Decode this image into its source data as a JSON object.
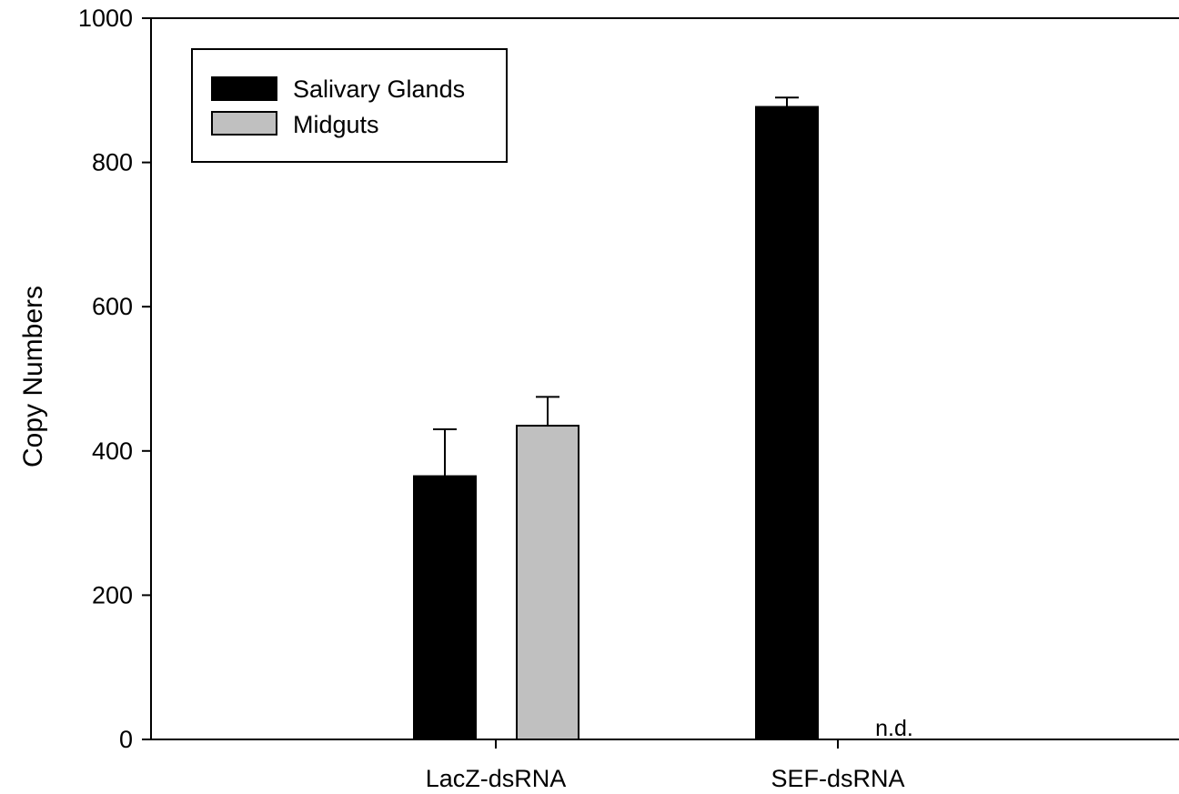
{
  "chart_data": {
    "type": "bar",
    "title": "",
    "xlabel": "",
    "ylabel": "Copy Numbers",
    "ylim": [
      0,
      1000
    ],
    "yticks": [
      0,
      200,
      400,
      600,
      800,
      1000
    ],
    "categories": [
      "LacZ-dsRNA",
      "SEF-dsRNA"
    ],
    "series": [
      {
        "name": "Salivary Glands",
        "color": "#000000",
        "values": [
          365,
          877
        ],
        "errors": [
          65,
          13
        ]
      },
      {
        "name": "Midguts",
        "color": "#c0c0c0",
        "values": [
          435,
          null
        ],
        "errors": [
          40,
          null
        ]
      }
    ],
    "annotations": [
      {
        "category": "SEF-dsRNA",
        "series": "Midguts",
        "text": "n.d."
      }
    ],
    "legend": {
      "position": "top-left"
    },
    "grid": false
  }
}
